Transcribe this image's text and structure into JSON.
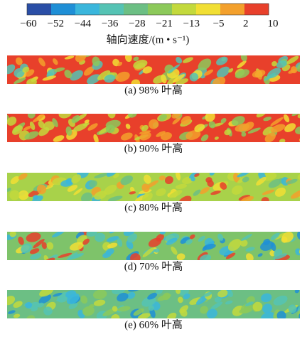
{
  "colorbar": {
    "ticks": [
      "−60",
      "−52",
      "−44",
      "−36",
      "−28",
      "−21",
      "−13",
      "−5",
      "2",
      "10"
    ],
    "colors": [
      "#2a4ea6",
      "#1f8fd6",
      "#3ab6dc",
      "#55c3b4",
      "#6cbf84",
      "#8cc95a",
      "#c3d93c",
      "#f1df34",
      "#f3a02c",
      "#e8402b"
    ],
    "label": "轴向速度/(m • s⁻¹)"
  },
  "panels": [
    {
      "caption": "(a) 98% 叶高"
    },
    {
      "caption": "(b) 90% 叶高"
    },
    {
      "caption": "(c) 80% 叶高"
    },
    {
      "caption": "(d) 70% 叶高"
    },
    {
      "caption": "(e) 60% 叶高"
    }
  ]
}
